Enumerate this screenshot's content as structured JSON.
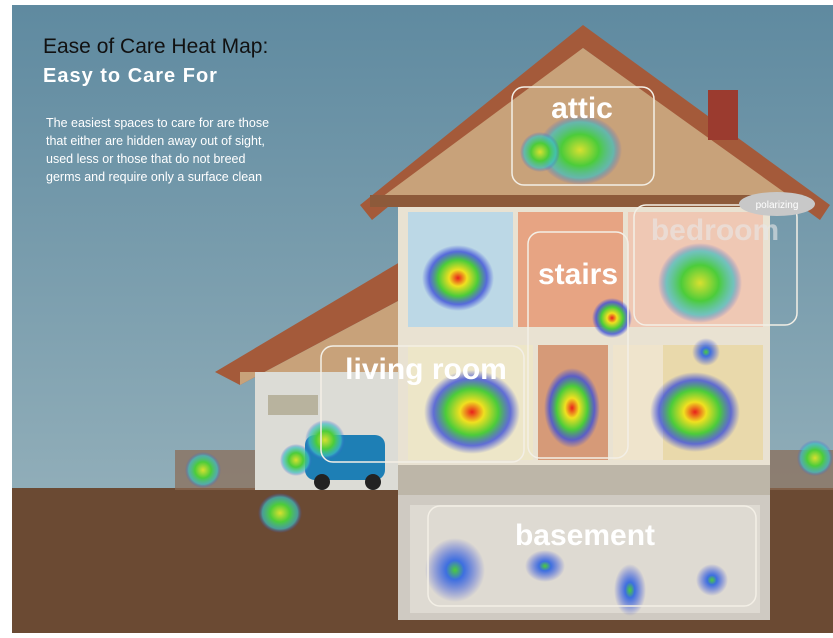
{
  "header": {
    "title": "Ease of Care Heat Map:",
    "subtitle": "Easy to Care For",
    "description": [
      "The easiest spaces to care for are those",
      "that either are hidden away out of sight,",
      "used less or those that do not breed",
      "germs and require only a surface clean"
    ]
  },
  "rooms": {
    "attic": "attic",
    "bedroom": "bedroom",
    "stairs": "stairs",
    "living_room": "living room",
    "basement": "basement"
  },
  "badge": "polarizing"
}
